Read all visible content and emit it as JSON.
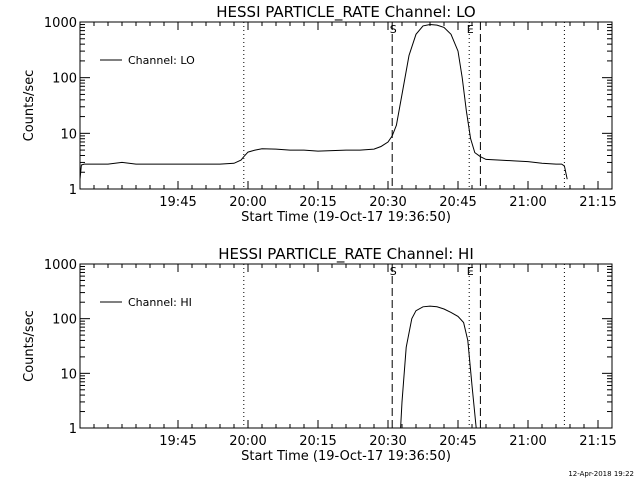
{
  "footer": {
    "timestamp": "12-Apr-2018 19:22"
  },
  "chart_data": [
    {
      "type": "line",
      "title": "HESSI PARTICLE_RATE Channel: LO",
      "xlabel": "Start Time (19-Oct-17 19:36:50)",
      "ylabel": "Counts/sec",
      "x_unit": "minutes",
      "xlim": [
        38,
        76
      ],
      "x_ticks": [
        45,
        50,
        55,
        60,
        65,
        70,
        75
      ],
      "x_tick_labels": [
        "19:45",
        "20:00",
        "20:15",
        "20:30",
        "20:45",
        "21:00",
        "21:15"
      ],
      "yscale": "log",
      "ylim": [
        1,
        1000
      ],
      "y_ticks": [
        1,
        10,
        100,
        1000
      ],
      "y_tick_labels": [
        "1",
        "10",
        "100",
        "1000"
      ],
      "grid": false,
      "legend": {
        "position": "top-left",
        "entries": [
          "Channel: LO"
        ]
      },
      "markers": [
        {
          "x": 60.3,
          "style": "dashed",
          "label": "S"
        },
        {
          "x": 65.8,
          "style": "dotted",
          "label": "E"
        },
        {
          "x": 49.7,
          "style": "dotted",
          "label": ""
        },
        {
          "x": 66.6,
          "style": "dashed",
          "label": ""
        },
        {
          "x": 72.6,
          "style": "dotted",
          "label": ""
        }
      ],
      "series": [
        {
          "name": "Channel: LO",
          "x": [
            38,
            38.1,
            38.3,
            39,
            40,
            41,
            42,
            43,
            44,
            45,
            46,
            47,
            48,
            49,
            49.5,
            49.7,
            50,
            50.5,
            51,
            52,
            53,
            54,
            55,
            56,
            57,
            58,
            59,
            59.5,
            60,
            60.3,
            60.6,
            61,
            61.5,
            62,
            62.5,
            63,
            63.5,
            64,
            64.5,
            65,
            65.3,
            65.6,
            65.9,
            66.2,
            66.6,
            67,
            68,
            69,
            70,
            71,
            72,
            72.4,
            72.6,
            72.8
          ],
          "y": [
            1.5,
            2.7,
            2.8,
            2.8,
            2.8,
            3.0,
            2.8,
            2.8,
            2.8,
            2.8,
            2.8,
            2.8,
            2.8,
            2.9,
            3.3,
            3.8,
            4.6,
            5.0,
            5.3,
            5.2,
            5.0,
            5.0,
            4.8,
            4.9,
            5.0,
            5.0,
            5.2,
            5.8,
            7.0,
            9.0,
            14,
            50,
            250,
            600,
            850,
            900,
            880,
            800,
            600,
            300,
            100,
            25,
            8,
            4.5,
            3.8,
            3.4,
            3.3,
            3.2,
            3.1,
            2.9,
            2.8,
            2.8,
            2.6,
            1.5
          ]
        }
      ]
    },
    {
      "type": "line",
      "title": "HESSI PARTICLE_RATE Channel: HI",
      "xlabel": "Start Time (19-Oct-17 19:36:50)",
      "ylabel": "Counts/sec",
      "x_unit": "minutes",
      "xlim": [
        38,
        76
      ],
      "x_ticks": [
        45,
        50,
        55,
        60,
        65,
        70,
        75
      ],
      "x_tick_labels": [
        "19:45",
        "20:00",
        "20:15",
        "20:30",
        "20:45",
        "21:00",
        "21:15"
      ],
      "yscale": "log",
      "ylim": [
        1,
        1000
      ],
      "y_ticks": [
        1,
        10,
        100,
        1000
      ],
      "y_tick_labels": [
        "1",
        "10",
        "100",
        "1000"
      ],
      "grid": false,
      "legend": {
        "position": "top-left",
        "entries": [
          "Channel: HI"
        ]
      },
      "markers": [
        {
          "x": 60.3,
          "style": "dashed",
          "label": "S"
        },
        {
          "x": 65.8,
          "style": "dotted",
          "label": "E"
        },
        {
          "x": 49.7,
          "style": "dotted",
          "label": ""
        },
        {
          "x": 66.6,
          "style": "dashed",
          "label": ""
        },
        {
          "x": 72.6,
          "style": "dotted",
          "label": ""
        }
      ],
      "series": [
        {
          "name": "Channel: HI",
          "x": [
            60.9,
            61.0,
            61.3,
            61.7,
            62.0,
            62.5,
            63.0,
            63.5,
            64.0,
            64.5,
            65.0,
            65.4,
            65.7,
            66.0,
            66.3
          ],
          "y": [
            1,
            3,
            30,
            100,
            140,
            165,
            170,
            165,
            150,
            130,
            110,
            85,
            40,
            6,
            1
          ]
        }
      ]
    }
  ]
}
